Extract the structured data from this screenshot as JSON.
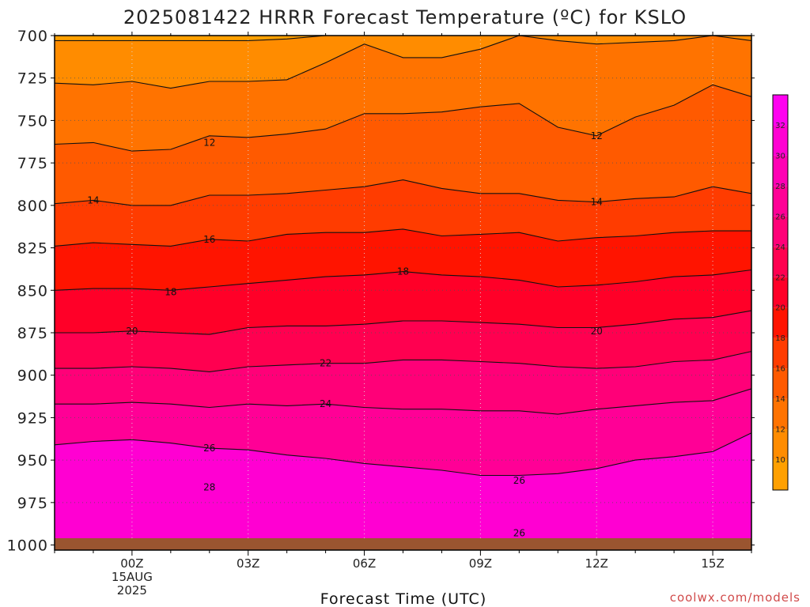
{
  "chart_data": {
    "type": "contour",
    "title": "2025081422 HRRR Forecast Temperature (ºC) for KSLO",
    "xlabel": "Forecast Time (UTC)",
    "ylabel": "",
    "x_tick_labels": [
      "00Z",
      "03Z",
      "06Z",
      "09Z",
      "12Z",
      "15Z"
    ],
    "x_tick_hours": [
      0,
      3,
      6,
      9,
      12,
      15
    ],
    "x_date_label": [
      "15AUG",
      "2025"
    ],
    "xlim_hours": [
      -2,
      16
    ],
    "y_tick_labels": [
      "700",
      "725",
      "750",
      "775",
      "800",
      "825",
      "850",
      "875",
      "900",
      "925",
      "950",
      "975",
      "1000"
    ],
    "y_ticks": [
      700,
      725,
      750,
      775,
      800,
      825,
      850,
      875,
      900,
      925,
      950,
      975,
      1000
    ],
    "ylim": [
      700,
      1003
    ],
    "y_inverted": true,
    "grid": "dotted",
    "surface_pressure_hpa": 996,
    "hours": [
      -2,
      -1,
      0,
      1,
      2,
      3,
      4,
      5,
      6,
      7,
      8,
      9,
      10,
      11,
      12,
      13,
      14,
      15,
      16
    ],
    "isotherms": [
      {
        "level": 10,
        "pressure": [
          703,
          703,
          703,
          703,
          703,
          703,
          702,
          700,
          699,
          698,
          699,
          700,
          700,
          700,
          700,
          700,
          700,
          700,
          700
        ]
      },
      {
        "level": 12,
        "pressure": [
          728,
          729,
          727,
          731,
          727,
          727,
          726,
          716,
          705,
          713,
          713,
          708,
          700,
          703,
          705,
          704,
          703,
          700,
          703
        ]
      },
      {
        "level": 14,
        "pressure": [
          764,
          763,
          768,
          767,
          759,
          760,
          758,
          755,
          746,
          746,
          745,
          742,
          740,
          754,
          759,
          748,
          741,
          729,
          736
        ]
      },
      {
        "level": 16,
        "pressure": [
          799,
          797,
          800,
          800,
          794,
          794,
          793,
          791,
          789,
          785,
          790,
          793,
          793,
          797,
          798,
          796,
          795,
          789,
          793
        ]
      },
      {
        "level": 18,
        "pressure": [
          824,
          822,
          823,
          824,
          820,
          821,
          817,
          816,
          816,
          814,
          818,
          817,
          816,
          821,
          819,
          818,
          816,
          815,
          815
        ]
      },
      {
        "level": 20,
        "pressure": [
          850,
          849,
          849,
          850,
          848,
          846,
          844,
          842,
          841,
          839,
          841,
          842,
          844,
          848,
          847,
          845,
          842,
          841,
          838
        ]
      },
      {
        "level": 22,
        "pressure": [
          875,
          875,
          874,
          875,
          876,
          872,
          871,
          871,
          870,
          868,
          868,
          869,
          870,
          872,
          872,
          870,
          867,
          866,
          862
        ]
      },
      {
        "level": 24,
        "pressure": [
          896,
          896,
          895,
          896,
          898,
          895,
          894,
          893,
          893,
          891,
          891,
          892,
          893,
          895,
          896,
          895,
          892,
          891,
          886
        ]
      },
      {
        "level": 26,
        "pressure": [
          917,
          917,
          916,
          917,
          919,
          917,
          918,
          917,
          919,
          920,
          920,
          921,
          921,
          923,
          920,
          918,
          916,
          915,
          908
        ]
      },
      {
        "level": 28,
        "pressure": [
          941,
          939,
          938,
          940,
          943,
          944,
          947,
          949,
          952,
          954,
          956,
          959,
          959,
          958,
          955,
          950,
          948,
          945,
          934
        ]
      }
    ],
    "contour_labels": [
      {
        "text": "12",
        "hour": 2,
        "pressure": 763
      },
      {
        "text": "12",
        "hour": 12,
        "pressure": 759
      },
      {
        "text": "14",
        "hour": -1,
        "pressure": 797
      },
      {
        "text": "14",
        "hour": 12,
        "pressure": 798
      },
      {
        "text": "16",
        "hour": 2,
        "pressure": 820
      },
      {
        "text": "18",
        "hour": 1,
        "pressure": 851
      },
      {
        "text": "18",
        "hour": 7,
        "pressure": 839
      },
      {
        "text": "20",
        "hour": 0,
        "pressure": 874
      },
      {
        "text": "20",
        "hour": 12,
        "pressure": 874
      },
      {
        "text": "22",
        "hour": 5,
        "pressure": 893
      },
      {
        "text": "24",
        "hour": 5,
        "pressure": 917
      },
      {
        "text": "26",
        "hour": 2,
        "pressure": 943
      },
      {
        "text": "26",
        "hour": 10,
        "pressure": 962
      },
      {
        "text": "26",
        "hour": 10,
        "pressure": 993
      },
      {
        "text": "28",
        "hour": 2,
        "pressure": 966
      }
    ],
    "colorbar": {
      "levels": [
        8,
        10,
        12,
        14,
        16,
        18,
        20,
        22,
        24,
        26,
        28,
        30,
        32,
        34
      ],
      "labels": [
        "10",
        "12",
        "14",
        "16",
        "18",
        "20",
        "22",
        "24",
        "26",
        "28",
        "30",
        "32"
      ],
      "colors": [
        "#ffa000",
        "#ff8c00",
        "#ff7300",
        "#ff5a00",
        "#ff3c00",
        "#ff1400",
        "#ff0028",
        "#ff0050",
        "#ff0078",
        "#ff0096",
        "#ff00b4",
        "#ff00d2",
        "#ff00f0"
      ]
    }
  },
  "credit": "coolwx.com/models"
}
